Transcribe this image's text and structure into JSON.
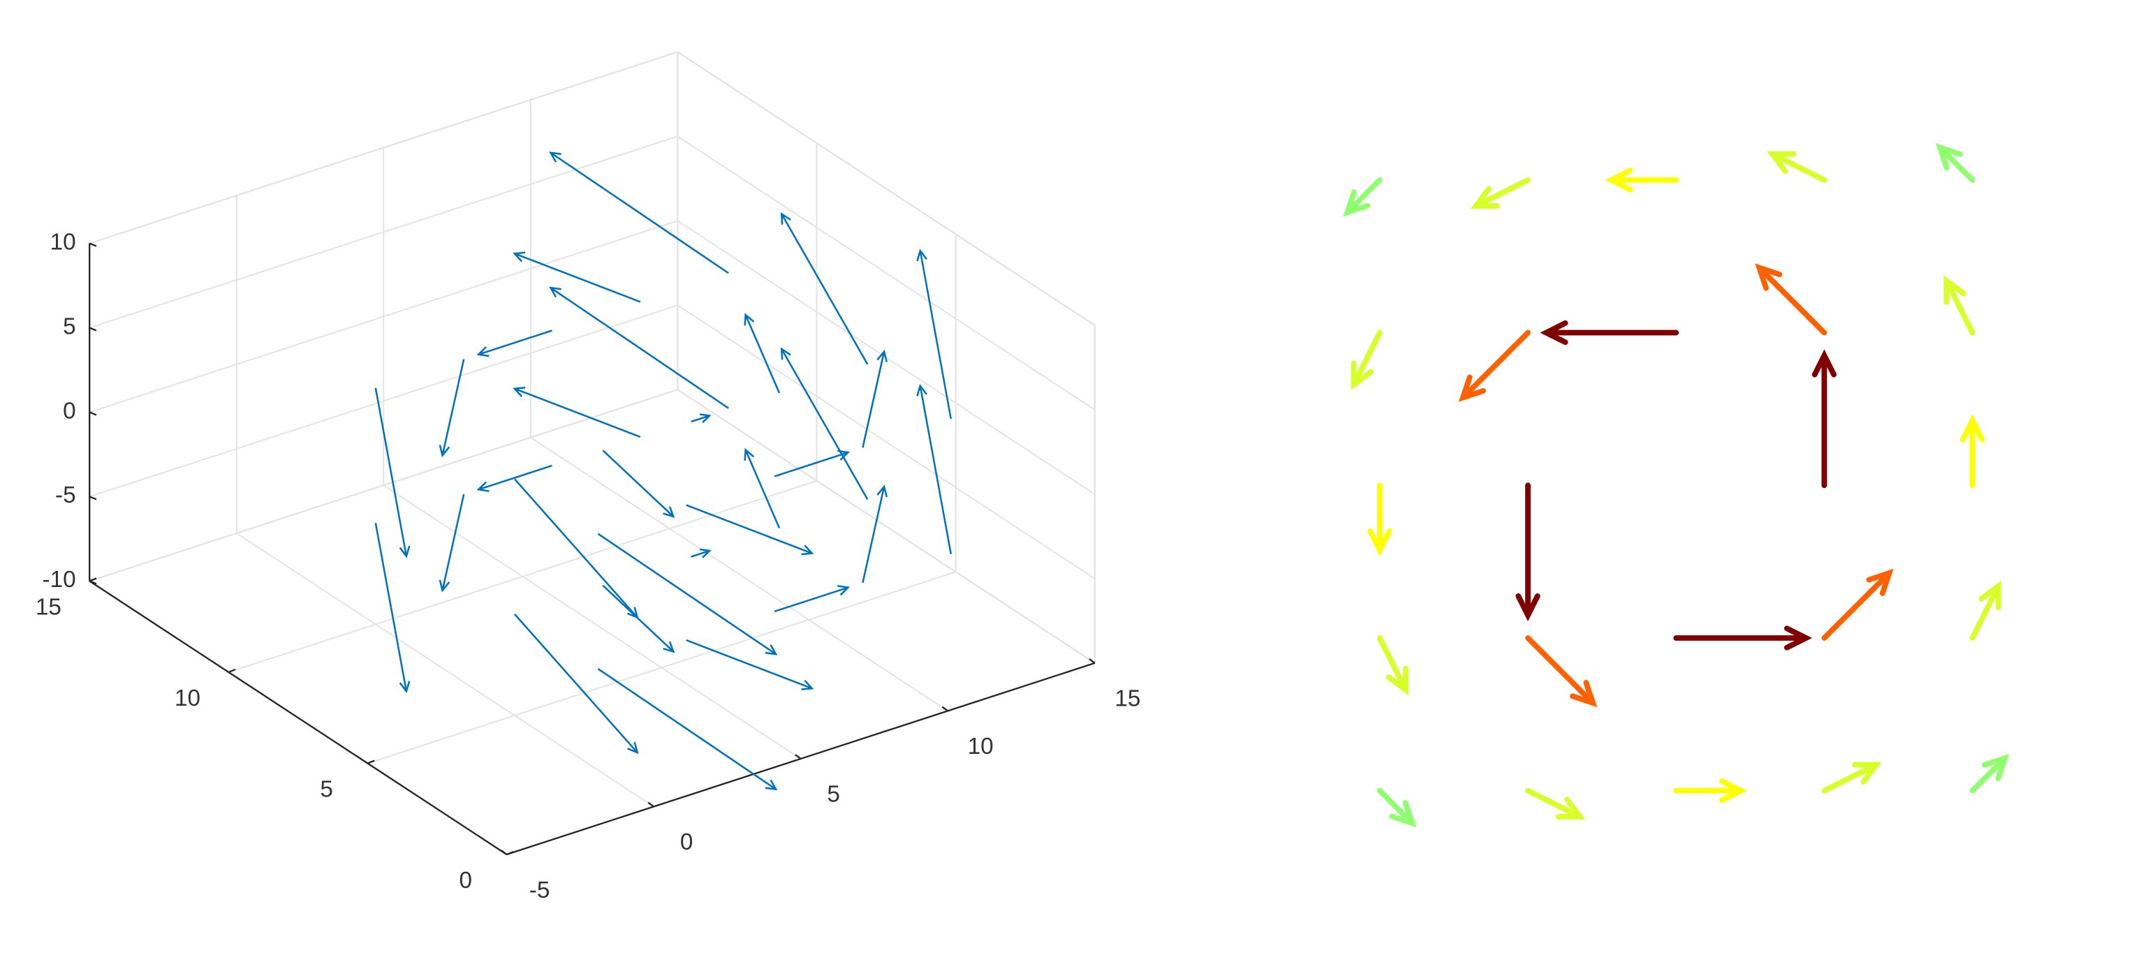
{
  "chart_data": [
    {
      "type": "quiver3",
      "color": "#0072bd",
      "xlim": [
        -5,
        15
      ],
      "ylim": [
        0,
        15
      ],
      "zlim": [
        -10,
        10
      ],
      "xticks": [
        -5,
        0,
        5,
        10,
        15
      ],
      "yticks": [
        0,
        5,
        10,
        15
      ],
      "zticks": [
        -10,
        -5,
        0,
        5,
        10
      ],
      "grid": true,
      "x": [
        0,
        3,
        6,
        9,
        12,
        0,
        3,
        6,
        9,
        12,
        0,
        3,
        6,
        9,
        12,
        0,
        3,
        6,
        9,
        12,
        0,
        3,
        6,
        9,
        12,
        0,
        3,
        6,
        9,
        12
      ],
      "y": [
        2,
        2,
        2,
        2,
        2,
        5,
        5,
        5,
        5,
        5,
        10,
        10,
        10,
        10,
        10,
        2,
        2,
        2,
        2,
        2,
        5,
        5,
        5,
        5,
        5,
        10,
        10,
        10,
        10,
        10
      ],
      "z": [
        -4,
        -4,
        -4,
        -4,
        -4,
        -4,
        -4,
        -4,
        -4,
        -4,
        -4,
        -4,
        -4,
        -4,
        -4,
        4,
        4,
        4,
        4,
        4,
        4,
        4,
        4,
        4,
        4,
        4,
        4,
        4,
        4,
        4
      ],
      "u": [
        1,
        1,
        1,
        1,
        1,
        0.25,
        0.25,
        0.25,
        0.25,
        0.25,
        -1,
        -1,
        -1,
        -1,
        -1,
        1,
        1,
        1,
        1,
        1,
        0.25,
        0.25,
        0.25,
        0.25,
        0.25,
        -1,
        -1,
        -1,
        -1,
        -1
      ],
      "v": [
        -1.5,
        -0.75,
        0,
        0.75,
        1.5,
        -1.5,
        -0.75,
        0,
        0.75,
        1.5,
        -1.5,
        -0.75,
        0,
        0.75,
        1.5,
        -1.5,
        -0.75,
        0,
        0.75,
        1.5,
        -1.5,
        -0.75,
        0,
        0.75,
        1.5,
        -1.5,
        -0.75,
        0,
        0.75,
        1.5
      ],
      "w": [
        -1.8,
        -0.9,
        0,
        0.9,
        1.8,
        -1.8,
        -0.9,
        0,
        0.9,
        1.8,
        -1.8,
        -0.9,
        0,
        0.9,
        1.8,
        -1.8,
        -0.9,
        0,
        0.9,
        1.8,
        -1.8,
        -0.9,
        0,
        0.9,
        1.8,
        -1.8,
        -0.9,
        0,
        0.9,
        1.8
      ]
    },
    {
      "type": "quiver",
      "colormap": "jet",
      "xlim": [
        -3,
        3
      ],
      "ylim": [
        -3,
        3
      ],
      "x": [
        -2,
        -1,
        0,
        1,
        2,
        -2,
        -1,
        0,
        1,
        2,
        -2,
        -1,
        1,
        2,
        -2,
        -1,
        0,
        1,
        2,
        -2,
        -1,
        0,
        1,
        2
      ],
      "y": [
        -2,
        -2,
        -2,
        -2,
        -2,
        -1,
        -1,
        -1,
        -1,
        -1,
        0,
        0,
        0,
        0,
        1,
        1,
        1,
        1,
        1,
        2,
        2,
        2,
        2,
        2
      ],
      "u": [
        0.25,
        0.4,
        0.5,
        0.4,
        0.25,
        0.2,
        0.5,
        1,
        0.5,
        0.2,
        0,
        0,
        0,
        0,
        -0.2,
        -0.5,
        -1,
        -0.5,
        -0.2,
        -0.25,
        -0.4,
        -0.5,
        -0.4,
        -0.25
      ],
      "v": [
        -0.25,
        -0.2,
        0,
        0.2,
        0.25,
        -0.4,
        -0.5,
        0,
        0.5,
        0.4,
        -0.5,
        -1,
        1,
        0.5,
        -0.4,
        -0.5,
        0,
        0.5,
        0.4,
        -0.25,
        -0.2,
        0,
        0.2,
        0.25
      ]
    }
  ]
}
